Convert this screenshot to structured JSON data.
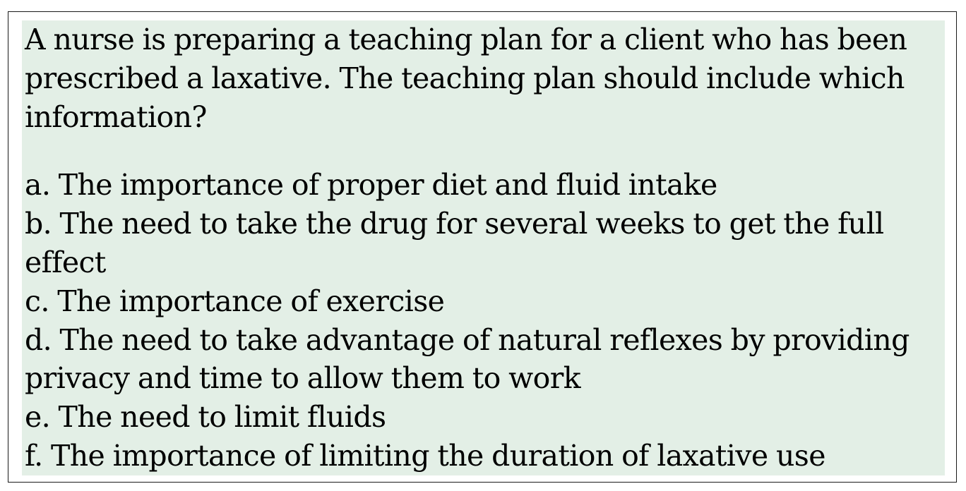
{
  "question": {
    "lines": [
      "A nurse is preparing a teaching plan for a client who has been",
      "prescribed a laxative. The teaching plan should include which",
      "information?"
    ]
  },
  "options": [
    {
      "lines": [
        "a. The importance of proper diet and fluid intake"
      ]
    },
    {
      "lines": [
        "b. The need to take the drug for several weeks to get the full",
        "effect"
      ]
    },
    {
      "lines": [
        "c. The importance of exercise"
      ]
    },
    {
      "lines": [
        "d. The need to take advantage of natural reflexes by providing",
        "privacy and time to allow them to work"
      ]
    },
    {
      "lines": [
        "e. The need to limit fluids"
      ]
    },
    {
      "lines": [
        "f. The importance of limiting the duration of laxative use"
      ]
    }
  ],
  "colors": {
    "background": "#e3efe6",
    "border": "#1a1a1a",
    "text": "#000000"
  }
}
